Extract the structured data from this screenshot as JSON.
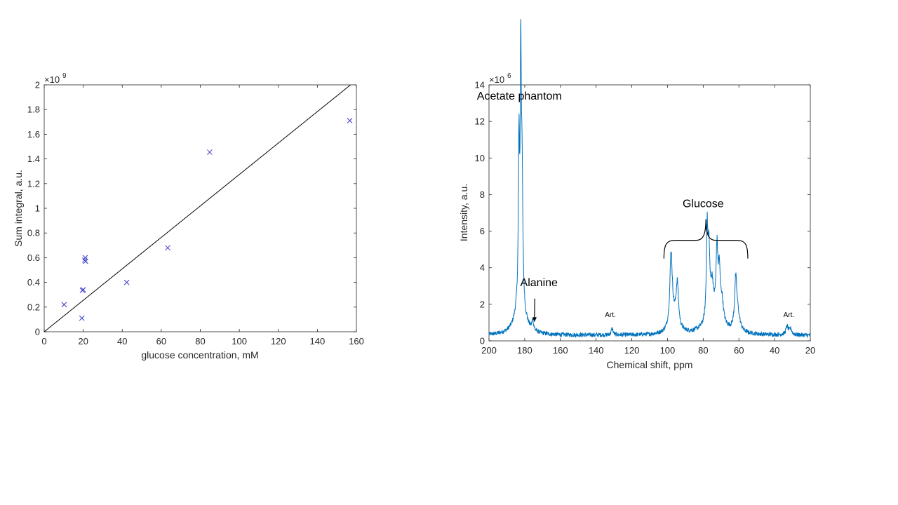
{
  "chart_data": [
    {
      "type": "scatter",
      "xlabel": "glucose concentration, mM",
      "ylabel": "Sum integral, a.u.",
      "y_multiplier": "×10",
      "y_multiplier_exp": "9",
      "xlim": [
        0,
        160
      ],
      "ylim": [
        0,
        2
      ],
      "xticks": [
        0,
        20,
        40,
        60,
        80,
        100,
        120,
        140,
        160
      ],
      "yticks": [
        0,
        0.2,
        0.4,
        0.6,
        0.8,
        1,
        1.2,
        1.4,
        1.6,
        1.8,
        2
      ],
      "marker_color": "#3a3acc",
      "line_color": "#000000",
      "points": [
        {
          "x": 10.2,
          "y": 0.22
        },
        {
          "x": 19.3,
          "y": 0.11
        },
        {
          "x": 19.6,
          "y": 0.335
        },
        {
          "x": 20.0,
          "y": 0.34
        },
        {
          "x": 20.8,
          "y": 0.58
        },
        {
          "x": 21.0,
          "y": 0.6
        },
        {
          "x": 21.2,
          "y": 0.57
        },
        {
          "x": 42.3,
          "y": 0.4
        },
        {
          "x": 63.3,
          "y": 0.68
        },
        {
          "x": 84.8,
          "y": 1.455
        },
        {
          "x": 156.6,
          "y": 1.71
        }
      ],
      "fit_line": {
        "x": [
          0,
          157
        ],
        "y": [
          0,
          2.0
        ]
      }
    },
    {
      "type": "line",
      "xlabel": "Chemical shift, ppm",
      "ylabel": "Intensity, a.u.",
      "y_multiplier": "×10",
      "y_multiplier_exp": "6",
      "xlim": [
        200,
        20
      ],
      "x_reversed": true,
      "ylim": [
        0,
        14
      ],
      "xticks": [
        200,
        180,
        160,
        140,
        120,
        100,
        80,
        60,
        40,
        20
      ],
      "yticks": [
        0,
        2,
        4,
        6,
        8,
        10,
        12,
        14
      ],
      "line_color": "#0072bd",
      "baseline": 0.3,
      "peaks": [
        {
          "center": 182.2,
          "height": 12.2,
          "width": 0.35
        },
        {
          "center": 183.2,
          "height": 8.2,
          "width": 0.4
        },
        {
          "center": 181.5,
          "height": 6.9,
          "width": 0.5
        },
        {
          "center": 182.6,
          "height": 1.8,
          "width": 3.0
        },
        {
          "center": 175.5,
          "height": 0.55,
          "width": 0.5
        },
        {
          "center": 131.0,
          "height": 0.35,
          "width": 0.6
        },
        {
          "center": 98.0,
          "height": 3.9,
          "width": 0.8
        },
        {
          "center": 94.5,
          "height": 2.3,
          "width": 0.8
        },
        {
          "center": 96.5,
          "height": 0.8,
          "width": 2.5
        },
        {
          "center": 77.8,
          "height": 4.7,
          "width": 0.5
        },
        {
          "center": 76.8,
          "height": 3.5,
          "width": 0.6
        },
        {
          "center": 75.0,
          "height": 1.8,
          "width": 1.0
        },
        {
          "center": 72.3,
          "height": 3.7,
          "width": 0.6
        },
        {
          "center": 71.0,
          "height": 2.5,
          "width": 0.6
        },
        {
          "center": 69.5,
          "height": 1.2,
          "width": 1.0
        },
        {
          "center": 74.0,
          "height": 0.8,
          "width": 6.0
        },
        {
          "center": 61.8,
          "height": 2.4,
          "width": 0.7
        },
        {
          "center": 60.8,
          "height": 1.0,
          "width": 1.5
        },
        {
          "center": 33.0,
          "height": 0.45,
          "width": 0.8
        },
        {
          "center": 31.0,
          "height": 0.3,
          "width": 0.8
        }
      ],
      "annotations": [
        {
          "text": "Acetate phantom",
          "x": 183,
          "y": 13.2
        },
        {
          "text": "Alanine",
          "x": 172,
          "y": 3.0,
          "arrow_to": {
            "x": 174.5,
            "y": 1.05
          }
        },
        {
          "text": "Art.",
          "x": 132,
          "y": 1.3,
          "small": true
        },
        {
          "text": "Art.",
          "x": 32,
          "y": 1.3,
          "small": true
        },
        {
          "text": "Glucose",
          "x": 80,
          "y": 7.3
        }
      ],
      "bracket": {
        "x_start": 102,
        "x_end": 55,
        "y": 5.5
      }
    }
  ]
}
